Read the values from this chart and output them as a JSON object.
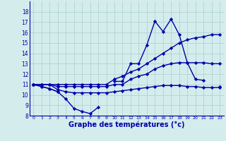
{
  "title": "Graphe des températures (°c)",
  "bg_color": "#d4ecec",
  "grid_color": "#aacece",
  "line_color": "#0000aa",
  "marker": "D",
  "markersize": 2.2,
  "linewidth": 1.0,
  "x_hours": [
    0,
    1,
    2,
    3,
    4,
    5,
    6,
    7,
    8,
    9,
    10,
    11,
    12,
    13,
    14,
    15,
    16,
    17,
    18,
    19,
    20,
    21,
    22,
    23
  ],
  "series": [
    [
      11.0,
      10.8,
      10.6,
      10.3,
      9.6,
      8.7,
      8.4,
      8.2,
      8.8,
      null,
      null,
      null,
      null,
      null,
      null,
      null,
      null,
      null,
      null,
      null,
      null,
      null,
      null,
      null
    ],
    [
      11.0,
      10.8,
      10.6,
      10.3,
      null,
      null,
      null,
      null,
      null,
      null,
      11.3,
      11.3,
      13.0,
      13.0,
      14.8,
      17.1,
      16.1,
      17.3,
      15.8,
      13.1,
      11.5,
      11.4,
      null,
      10.8
    ],
    [
      11.0,
      11.0,
      11.0,
      11.0,
      11.0,
      11.0,
      11.0,
      11.0,
      11.0,
      11.0,
      11.5,
      11.8,
      12.2,
      12.5,
      13.0,
      13.5,
      14.0,
      14.5,
      15.0,
      15.3,
      15.5,
      15.6,
      15.8,
      15.8
    ],
    [
      11.0,
      11.0,
      11.0,
      10.8,
      10.8,
      10.8,
      10.8,
      10.8,
      10.8,
      10.8,
      11.0,
      11.0,
      11.5,
      11.8,
      12.0,
      12.5,
      12.8,
      13.0,
      13.1,
      13.1,
      13.1,
      13.1,
      13.0,
      13.0
    ],
    [
      11.0,
      11.0,
      11.0,
      10.5,
      10.3,
      10.2,
      10.2,
      10.2,
      10.2,
      10.2,
      10.3,
      10.4,
      10.5,
      10.6,
      10.7,
      10.8,
      10.9,
      10.9,
      10.9,
      10.8,
      10.8,
      10.7,
      10.7,
      10.7
    ]
  ],
  "ylim": [
    8,
    19
  ],
  "yticks": [
    8,
    9,
    10,
    11,
    12,
    13,
    14,
    15,
    16,
    17,
    18
  ],
  "xlim": [
    -0.5,
    23.5
  ],
  "xtick_fontsize": 4.5,
  "ytick_fontsize": 5.5,
  "xlabel_fontsize": 7.0,
  "xlabel_fontweight": "bold"
}
